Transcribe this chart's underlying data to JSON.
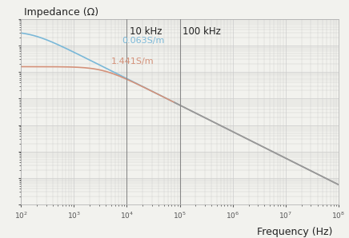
{
  "xlabel": "Frequency (Hz)",
  "ylabel": "Impedance (Ω)",
  "xlim": [
    100.0,
    100000000.0
  ],
  "ylim": [
    10.0,
    100000000.0
  ],
  "vline1_freq": 10000,
  "vline2_freq": 100000,
  "vline1_label": "10 kHz",
  "vline2_label": "100 kHz",
  "label_blue": "0.063S/m",
  "label_red": "1.441S/m",
  "color_blue": "#7ab8d8",
  "color_red": "#d4927a",
  "color_gray": "#999999",
  "color_vline": "#888888",
  "background_color": "#f2f2ee",
  "grid_color": "#cccccc",
  "merge_start_freq": 80000,
  "R_blue": 35000000.0,
  "C_blue": 2.8e-11,
  "R_red": 1600000.0,
  "C_red": 2.8e-11
}
